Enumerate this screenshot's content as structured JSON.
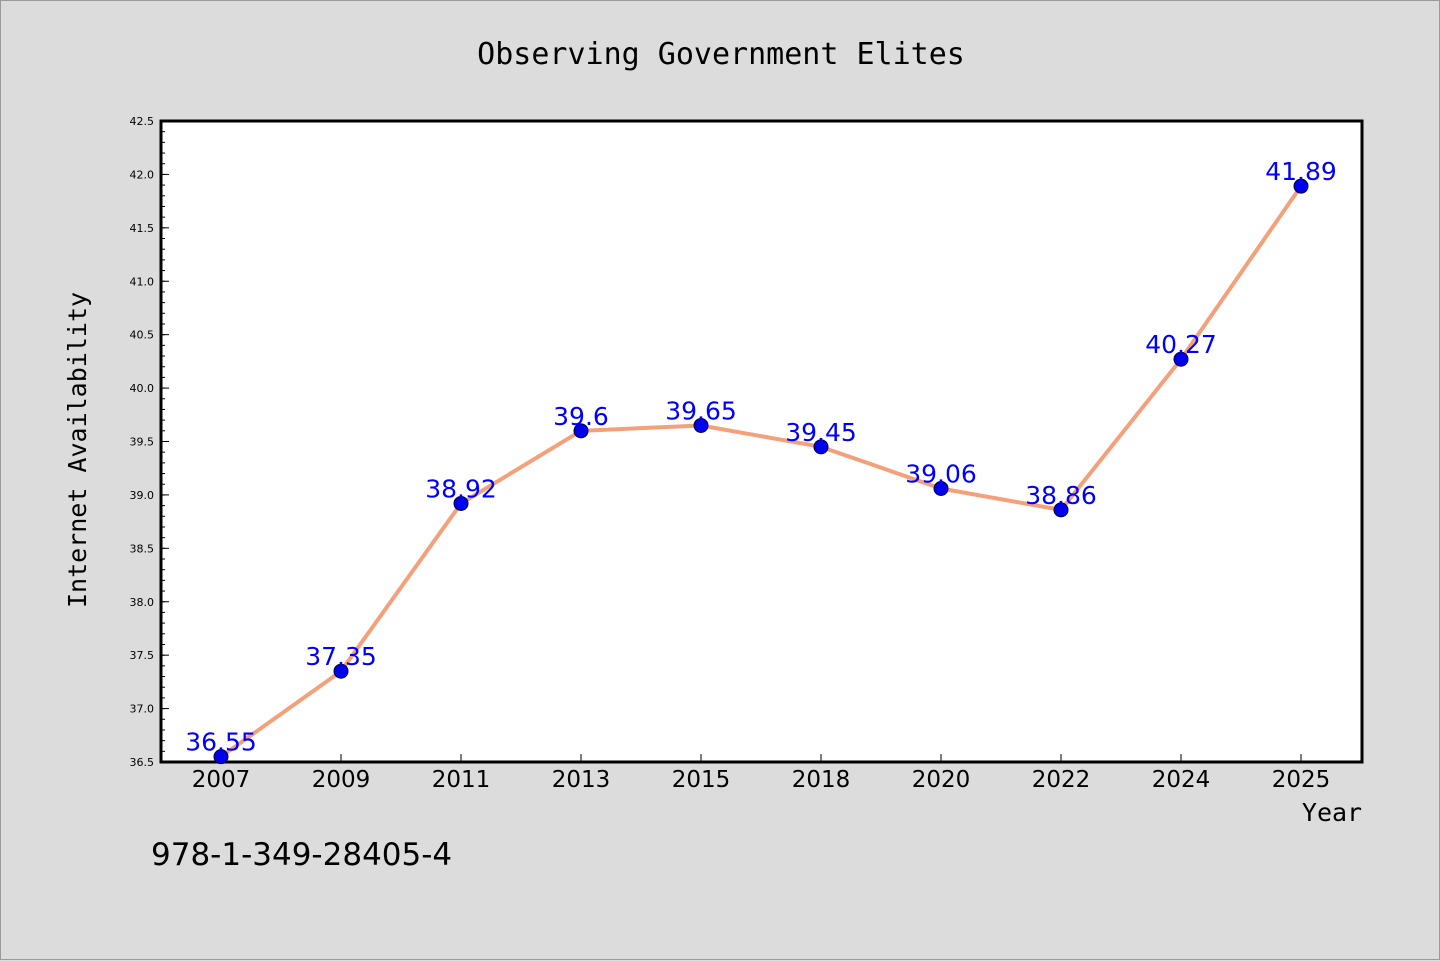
{
  "chart_data": {
    "type": "line",
    "title": "Observing Government Elites",
    "xlabel": "Year",
    "ylabel": "Internet Availability",
    "categories": [
      "2007",
      "2009",
      "2011",
      "2013",
      "2015",
      "2018",
      "2020",
      "2022",
      "2024",
      "2025"
    ],
    "series": [
      {
        "values": [
          36.55,
          37.35,
          38.92,
          39.6,
          39.65,
          39.45,
          39.06,
          38.86,
          40.27,
          41.89
        ],
        "data_labels": [
          "36.55",
          "37.35",
          "38.92",
          "39.6",
          "39.65",
          "39.45",
          "39.06",
          "38.86",
          "40.27",
          "41.89"
        ],
        "line_color": "#f4a07a",
        "marker_color": "#0000ee",
        "label_color": "#0000ff"
      }
    ],
    "ylim": [
      36.5,
      42.5
    ],
    "yticks": [
      "36.5",
      "37.0",
      "37.5",
      "38.0",
      "38.5",
      "39.0",
      "39.5",
      "40.0",
      "40.5",
      "41.0",
      "41.5",
      "42.0",
      "42.5"
    ],
    "grid": false,
    "legend": "none"
  },
  "footer_text": "978-1-349-28405-4",
  "colors": {
    "figure_background": "#dcdcdc",
    "plot_background": "#ffffff"
  }
}
